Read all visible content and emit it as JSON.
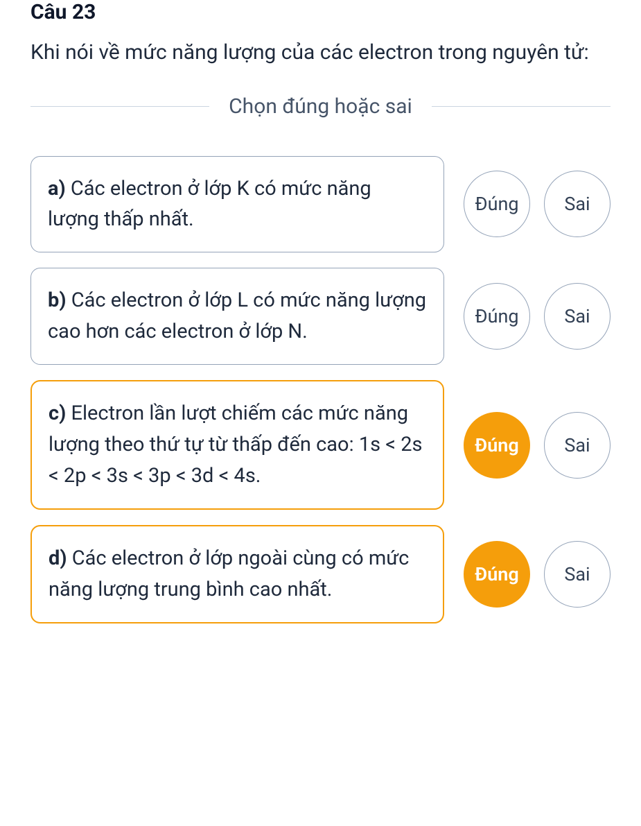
{
  "question": {
    "number": "Câu 23",
    "text": "Khi nói về mức năng lượng của các electron trong nguyên tử:"
  },
  "divider": {
    "text": "Chọn đúng hoặc sai"
  },
  "button_labels": {
    "true": "Đúng",
    "false": "Sai"
  },
  "options": [
    {
      "label": "a)",
      "text": " Các electron ở lớp K có mức năng lượng thấp nhất.",
      "selected": null,
      "box_selected": false
    },
    {
      "label": "b)",
      "text": " Các electron ở lớp L có mức năng lượng cao hơn các electron ở lớp N.",
      "selected": null,
      "box_selected": false
    },
    {
      "label": "c)",
      "text": " Electron lần lượt chiếm các mức năng lượng theo thứ tự từ thấp đến cao: 1s < 2s < 2p < 3s < 3p < 3d < 4s.",
      "selected": "true",
      "box_selected": true
    },
    {
      "label": "d)",
      "text": " Các electron ở lớp ngoài cùng có mức năng lượng trung bình cao nhất.",
      "selected": "true",
      "box_selected": true
    }
  ],
  "styling": {
    "primary_text_color": "#1e293b",
    "secondary_text_color": "#475569",
    "border_color": "#94a3b8",
    "divider_color": "#cbd5e1",
    "accent_color": "#f59e0b",
    "background_color": "#ffffff",
    "question_fontsize": 30,
    "option_fontsize": 29,
    "button_fontsize": 27,
    "button_diameter": 96,
    "border_radius": 14
  }
}
